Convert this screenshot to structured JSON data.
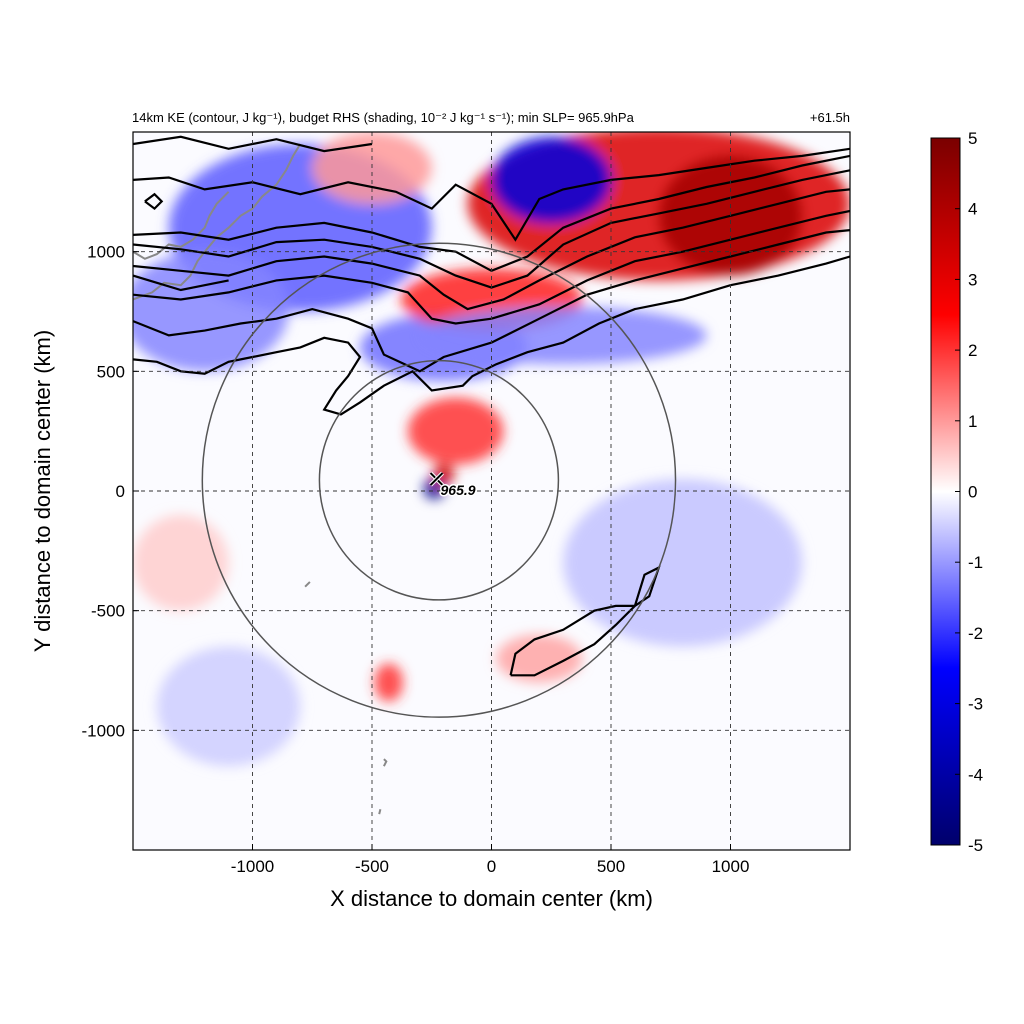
{
  "figure": {
    "title_left": "14km KE (contour, J kg⁻¹), budget RHS (shading, 10⁻² J kg⁻¹ s⁻¹); min SLP= 965.9hPa",
    "title_right": "+61.5h"
  },
  "chart_data": {
    "type": "heatmap",
    "xlabel": "X distance to domain center (km)",
    "ylabel": "Y distance to domain center (km)",
    "xlim": [
      -1500,
      1500
    ],
    "ylim": [
      -1500,
      1500
    ],
    "x_ticks": [
      -1000,
      -500,
      0,
      500,
      1000
    ],
    "y_ticks": [
      -1000,
      -500,
      0,
      500,
      1000
    ],
    "x_tick_labels": [
      "-1000",
      "-500",
      "0",
      "500",
      "1000"
    ],
    "y_tick_labels": [
      "-1000",
      "-500",
      "0",
      "500",
      "1000"
    ],
    "grid": true,
    "colorbar": {
      "min": -5,
      "max": 5,
      "ticks": [
        5,
        4,
        3,
        2,
        1,
        0,
        -1,
        -2,
        -3,
        -4,
        -5
      ],
      "tick_labels": [
        "5",
        "4",
        "3",
        "2",
        "1",
        "0",
        "-1",
        "-2",
        "-3",
        "-4",
        "-5"
      ],
      "colors": [
        "#00006b",
        "#0000ff",
        "#ffffff",
        "#ff0000",
        "#7a0000"
      ]
    },
    "storm_center": {
      "x": -230,
      "y": 50,
      "label": "965.9",
      "marker": "x-icon"
    },
    "range_circles": [
      {
        "cx": -220,
        "cy": 45,
        "r": 500
      },
      {
        "cx": -220,
        "cy": 45,
        "r": 990
      }
    ],
    "shading_regions": [
      {
        "x": 700,
        "y": 1200,
        "rx": 800,
        "ry": 320,
        "value": 3.2
      },
      {
        "x": 1000,
        "y": 1150,
        "rx": 300,
        "ry": 250,
        "value": 4.2
      },
      {
        "x": 250,
        "y": 1300,
        "rx": 250,
        "ry": 180,
        "value": -3.0
      },
      {
        "x": -800,
        "y": 1100,
        "rx": 550,
        "ry": 350,
        "value": -1.6
      },
      {
        "x": -1200,
        "y": 750,
        "rx": 350,
        "ry": 250,
        "value": -1.2
      },
      {
        "x": -500,
        "y": 1350,
        "rx": 250,
        "ry": 150,
        "value": 1.0
      },
      {
        "x": -200,
        "y": 600,
        "rx": 350,
        "ry": 140,
        "value": -1.4
      },
      {
        "x": 0,
        "y": 800,
        "rx": 380,
        "ry": 130,
        "value": 2.2
      },
      {
        "x": -150,
        "y": 250,
        "rx": 200,
        "ry": 140,
        "value": 2.0
      },
      {
        "x": -240,
        "y": 10,
        "rx": 45,
        "ry": 45,
        "value": -4.5
      },
      {
        "x": -200,
        "y": 70,
        "rx": 45,
        "ry": 45,
        "value": 3.5
      },
      {
        "x": 300,
        "y": 650,
        "rx": 600,
        "ry": 120,
        "value": -1.2
      },
      {
        "x": 200,
        "y": -700,
        "rx": 180,
        "ry": 100,
        "value": 0.9
      },
      {
        "x": -430,
        "y": -800,
        "rx": 60,
        "ry": 80,
        "value": 2.0
      },
      {
        "x": 800,
        "y": -300,
        "rx": 500,
        "ry": 350,
        "value": -0.6
      },
      {
        "x": -1100,
        "y": -900,
        "rx": 300,
        "ry": 250,
        "value": -0.5
      },
      {
        "x": -1300,
        "y": -300,
        "rx": 200,
        "ry": 200,
        "value": 0.5
      }
    ],
    "ke_contours": [
      [
        [
          -1500,
          1450
        ],
        [
          -1300,
          1480
        ],
        [
          -1100,
          1430
        ],
        [
          -900,
          1470
        ],
        [
          -700,
          1420
        ],
        [
          -500,
          1450
        ]
      ],
      [
        [
          -1500,
          1300
        ],
        [
          -1350,
          1310
        ],
        [
          -1200,
          1260
        ],
        [
          -1000,
          1290
        ],
        [
          -800,
          1240
        ],
        [
          -600,
          1290
        ],
        [
          -400,
          1250
        ],
        [
          -250,
          1180
        ],
        [
          -150,
          1280
        ],
        [
          0,
          1200
        ],
        [
          100,
          1050
        ],
        [
          200,
          1220
        ],
        [
          300,
          1260
        ],
        [
          500,
          1300
        ],
        [
          700,
          1320
        ],
        [
          900,
          1350
        ],
        [
          1100,
          1380
        ],
        [
          1300,
          1400
        ],
        [
          1500,
          1430
        ]
      ],
      [
        [
          -1500,
          1070
        ],
        [
          -1300,
          1080
        ],
        [
          -1100,
          1050
        ],
        [
          -900,
          1100
        ],
        [
          -700,
          1120
        ],
        [
          -500,
          1080
        ],
        [
          -300,
          1020
        ],
        [
          -150,
          1000
        ],
        [
          0,
          920
        ],
        [
          150,
          980
        ],
        [
          300,
          1100
        ],
        [
          500,
          1180
        ],
        [
          700,
          1220
        ],
        [
          900,
          1270
        ],
        [
          1100,
          1310
        ],
        [
          1300,
          1360
        ],
        [
          1500,
          1400
        ]
      ],
      [
        [
          -1500,
          1030
        ],
        [
          -1300,
          1010
        ],
        [
          -1100,
          980
        ],
        [
          -900,
          1040
        ],
        [
          -700,
          1050
        ],
        [
          -500,
          1020
        ],
        [
          -300,
          970
        ],
        [
          -150,
          900
        ],
        [
          0,
          850
        ],
        [
          150,
          900
        ],
        [
          300,
          1030
        ],
        [
          500,
          1120
        ],
        [
          700,
          1160
        ],
        [
          900,
          1200
        ],
        [
          1100,
          1250
        ],
        [
          1300,
          1300
        ],
        [
          1500,
          1340
        ]
      ],
      [
        [
          -1500,
          940
        ],
        [
          -1300,
          920
        ],
        [
          -1100,
          900
        ],
        [
          -900,
          960
        ],
        [
          -700,
          980
        ],
        [
          -500,
          950
        ],
        [
          -300,
          900
        ],
        [
          -200,
          820
        ],
        [
          -100,
          760
        ],
        [
          50,
          800
        ],
        [
          200,
          880
        ],
        [
          400,
          980
        ],
        [
          600,
          1060
        ],
        [
          800,
          1100
        ],
        [
          1000,
          1150
        ],
        [
          1200,
          1200
        ],
        [
          1400,
          1250
        ],
        [
          1500,
          1260
        ]
      ],
      [
        [
          -1500,
          820
        ],
        [
          -1300,
          800
        ],
        [
          -1100,
          830
        ],
        [
          -900,
          880
        ],
        [
          -700,
          900
        ],
        [
          -500,
          870
        ],
        [
          -350,
          830
        ],
        [
          -250,
          720
        ],
        [
          -150,
          700
        ],
        [
          0,
          720
        ],
        [
          200,
          780
        ],
        [
          400,
          880
        ],
        [
          600,
          960
        ],
        [
          800,
          1000
        ],
        [
          1000,
          1050
        ],
        [
          1200,
          1100
        ],
        [
          1400,
          1150
        ],
        [
          1500,
          1170
        ]
      ],
      [
        [
          -1500,
          710
        ],
        [
          -1350,
          650
        ],
        [
          -1200,
          670
        ],
        [
          -1050,
          700
        ],
        [
          -900,
          720
        ],
        [
          -750,
          760
        ],
        [
          -600,
          720
        ],
        [
          -500,
          680
        ],
        [
          -450,
          570
        ],
        [
          -300,
          500
        ],
        [
          -200,
          560
        ],
        [
          0,
          620
        ],
        [
          200,
          720
        ],
        [
          400,
          820
        ],
        [
          600,
          880
        ],
        [
          800,
          930
        ],
        [
          1000,
          980
        ],
        [
          1200,
          1030
        ],
        [
          1400,
          1080
        ],
        [
          1500,
          1090
        ]
      ],
      [
        [
          -1500,
          550
        ],
        [
          -1400,
          540
        ],
        [
          -1300,
          500
        ],
        [
          -1200,
          490
        ],
        [
          -1100,
          540
        ],
        [
          -1000,
          560
        ],
        [
          -900,
          580
        ],
        [
          -800,
          600
        ],
        [
          -700,
          640
        ],
        [
          -600,
          620
        ],
        [
          -550,
          560
        ],
        [
          -600,
          480
        ],
        [
          -650,
          420
        ],
        [
          -700,
          340
        ],
        [
          -630,
          320
        ],
        [
          -550,
          370
        ],
        [
          -450,
          440
        ],
        [
          -330,
          500
        ],
        [
          -250,
          420
        ],
        [
          -120,
          440
        ],
        [
          -80,
          480
        ],
        [
          20,
          530
        ],
        [
          150,
          580
        ],
        [
          300,
          620
        ],
        [
          450,
          700
        ],
        [
          600,
          760
        ],
        [
          800,
          800
        ],
        [
          1000,
          860
        ],
        [
          1200,
          900
        ],
        [
          1400,
          950
        ],
        [
          1500,
          980
        ]
      ],
      [
        [
          -1500,
          900
        ],
        [
          -1400,
          870
        ],
        [
          -1300,
          840
        ],
        [
          -1200,
          860
        ],
        [
          -1100,
          880
        ]
      ],
      [
        [
          -1450,
          1210
        ],
        [
          -1410,
          1240
        ],
        [
          -1380,
          1210
        ],
        [
          -1410,
          1180
        ],
        [
          -1450,
          1210
        ]
      ],
      [
        [
          80,
          -770
        ],
        [
          100,
          -680
        ],
        [
          180,
          -620
        ],
        [
          300,
          -580
        ],
        [
          430,
          -500
        ],
        [
          520,
          -480
        ],
        [
          600,
          -480
        ],
        [
          660,
          -440
        ],
        [
          700,
          -320
        ],
        [
          640,
          -350
        ],
        [
          600,
          -480
        ],
        [
          520,
          -560
        ],
        [
          430,
          -640
        ],
        [
          300,
          -710
        ],
        [
          180,
          -770
        ],
        [
          80,
          -770
        ]
      ]
    ],
    "coastlines": [
      [
        [
          -1500,
          800
        ],
        [
          -1420,
          830
        ],
        [
          -1370,
          870
        ],
        [
          -1300,
          860
        ],
        [
          -1260,
          900
        ],
        [
          -1230,
          960
        ],
        [
          -1200,
          1000
        ],
        [
          -1150,
          1060
        ],
        [
          -1100,
          1100
        ],
        [
          -1050,
          1150
        ],
        [
          -1000,
          1180
        ],
        [
          -960,
          1230
        ],
        [
          -900,
          1280
        ],
        [
          -860,
          1340
        ],
        [
          -830,
          1400
        ],
        [
          -800,
          1450
        ]
      ],
      [
        [
          -1500,
          1000
        ],
        [
          -1450,
          970
        ],
        [
          -1400,
          990
        ],
        [
          -1350,
          1030
        ],
        [
          -1300,
          1020
        ],
        [
          -1250,
          1050
        ],
        [
          -1200,
          1100
        ],
        [
          -1180,
          1150
        ],
        [
          -1150,
          1200
        ],
        [
          -1100,
          1250
        ]
      ],
      [
        [
          -780,
          -400
        ],
        [
          -760,
          -380
        ]
      ],
      [
        [
          -450,
          -1150
        ],
        [
          -440,
          -1130
        ],
        [
          -450,
          -1120
        ]
      ],
      [
        [
          -470,
          -1350
        ],
        [
          -465,
          -1330
        ]
      ]
    ]
  }
}
